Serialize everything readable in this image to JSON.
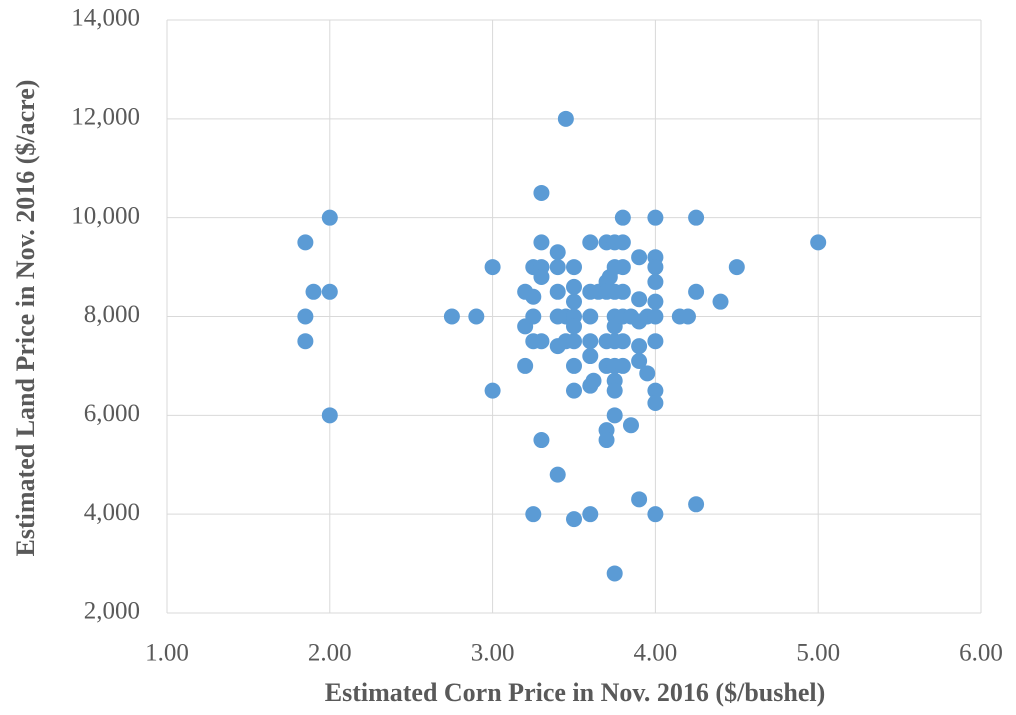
{
  "chart_data": {
    "type": "scatter",
    "x_label": "Estimated Corn Price in Nov. 2016 ($/bushel)",
    "y_label": "Estimated Land Price in Nov. 2016 ($/acre)",
    "xlim": [
      1,
      6
    ],
    "xticks": [
      {
        "value": 1,
        "label": "1.00"
      },
      {
        "value": 2,
        "label": "2.00"
      },
      {
        "value": 3,
        "label": "3.00"
      },
      {
        "value": 4,
        "label": "4.00"
      },
      {
        "value": 5,
        "label": "5.00"
      },
      {
        "value": 6,
        "label": "6.00"
      }
    ],
    "ylim": [
      2000,
      14000
    ],
    "yticks": [
      {
        "value": 2000,
        "label": "2,000"
      },
      {
        "value": 4000,
        "label": "4,000"
      },
      {
        "value": 6000,
        "label": "6,000"
      },
      {
        "value": 8000,
        "label": "8,000"
      },
      {
        "value": 10000,
        "label": "10,000"
      },
      {
        "value": 12000,
        "label": "12,000"
      },
      {
        "value": 14000,
        "label": "14,000"
      }
    ],
    "grid": true,
    "color": "#5b9bd5",
    "x": [
      1.85,
      1.9,
      1.85,
      1.85,
      2.0,
      2.0,
      2.0,
      2.75,
      2.9,
      3.0,
      3.0,
      3.2,
      3.2,
      3.2,
      3.25,
      3.25,
      3.25,
      3.25,
      3.25,
      3.3,
      3.3,
      3.3,
      3.3,
      3.3,
      3.3,
      3.4,
      3.4,
      3.4,
      3.4,
      3.4,
      3.4,
      3.45,
      3.45,
      3.45,
      3.5,
      3.5,
      3.5,
      3.5,
      3.5,
      3.5,
      3.5,
      3.5,
      3.5,
      3.6,
      3.6,
      3.6,
      3.6,
      3.6,
      3.6,
      3.6,
      3.62,
      3.65,
      3.7,
      3.7,
      3.7,
      3.7,
      3.7,
      3.7,
      3.7,
      3.72,
      3.75,
      3.75,
      3.75,
      3.75,
      3.75,
      3.75,
      3.75,
      3.75,
      3.75,
      3.75,
      3.75,
      3.8,
      3.8,
      3.8,
      3.8,
      3.8,
      3.8,
      3.8,
      3.85,
      3.85,
      3.9,
      3.9,
      3.9,
      3.9,
      3.9,
      3.9,
      3.95,
      3.95,
      4.0,
      4.0,
      4.0,
      4.0,
      4.0,
      4.0,
      4.0,
      4.0,
      4.0,
      4.0,
      4.15,
      4.2,
      4.25,
      4.25,
      4.25,
      4.4,
      4.5,
      5.0
    ],
    "values": [
      9500,
      8500,
      8000,
      7500,
      10000,
      8500,
      6000,
      8000,
      8000,
      9000,
      6500,
      8500,
      7800,
      7000,
      9000,
      8400,
      8000,
      7500,
      4000,
      10500,
      9500,
      9000,
      8800,
      7500,
      5500,
      9300,
      9000,
      8500,
      8000,
      7400,
      4800,
      12000,
      8000,
      7500,
      9000,
      8600,
      8300,
      8000,
      7800,
      7500,
      7000,
      6500,
      3900,
      9500,
      8500,
      8000,
      7500,
      7200,
      6600,
      4000,
      6700,
      8500,
      9500,
      8700,
      8500,
      7500,
      7000,
      5700,
      5500,
      8800,
      9500,
      9000,
      8500,
      8000,
      7800,
      7500,
      7000,
      6700,
      6500,
      6000,
      2800,
      9500,
      10000,
      9000,
      8500,
      8000,
      7500,
      7000,
      8000,
      5800,
      9200,
      8350,
      7900,
      7400,
      7100,
      4300,
      8000,
      6850,
      10000,
      9200,
      9000,
      8700,
      8300,
      8000,
      7500,
      6500,
      6250,
      4000,
      8000,
      8000,
      10000,
      8500,
      4200,
      8300,
      9000,
      9500
    ]
  }
}
